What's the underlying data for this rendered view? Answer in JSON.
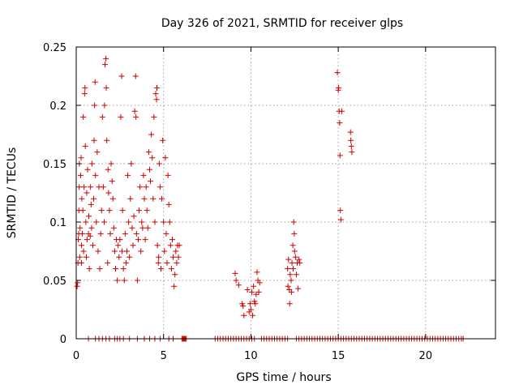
{
  "chart_data": {
    "type": "scatter",
    "title": "Day 326 of 2021, SRMTID for receiver glps",
    "xlabel": "GPS time / hours",
    "ylabel": "SRMTID / TECUs",
    "xlim": [
      0,
      24
    ],
    "ylim": [
      0,
      0.25
    ],
    "xticks": [
      0,
      5,
      10,
      15,
      20
    ],
    "xtick_labels": [
      "0",
      "5",
      "10",
      "15",
      "20"
    ],
    "yticks": [
      0,
      0.05,
      0.1,
      0.15,
      0.2,
      0.25
    ],
    "ytick_labels": [
      "0",
      "0.05",
      "0.1",
      "0.15",
      "0.2",
      "0.25"
    ],
    "grid": true,
    "marker": "plus",
    "color": "#cc0000",
    "series": [
      {
        "points": [
          [
            0.05,
            0.045
          ],
          [
            0.08,
            0.048
          ],
          [
            0.1,
            0.065
          ],
          [
            0.12,
            0.085
          ],
          [
            0.14,
            0.09
          ],
          [
            0.15,
            0.11
          ],
          [
            0.17,
            0.13
          ],
          [
            0.18,
            0.15
          ],
          [
            0.2,
            0.07
          ],
          [
            0.22,
            0.095
          ],
          [
            0.25,
            0.14
          ],
          [
            0.28,
            0.155
          ],
          [
            0.3,
            0.08
          ],
          [
            0.3,
            0.065
          ],
          [
            0.32,
            0.12
          ],
          [
            0.35,
            0.09
          ],
          [
            0.38,
            0.11
          ],
          [
            0.4,
            0.19
          ],
          [
            0.42,
            0.075
          ],
          [
            0.45,
            0.13
          ],
          [
            0.48,
            0.21
          ],
          [
            0.5,
            0.215
          ],
          [
            0.52,
            0.165
          ],
          [
            0.55,
            0.1
          ],
          [
            0.58,
            0.07
          ],
          [
            0.6,
            0.125
          ],
          [
            0.62,
            0.085
          ],
          [
            0.65,
            0.145
          ],
          [
            0.7,
            0.09
          ],
          [
            0.72,
            0.105
          ],
          [
            0.75,
            0.06
          ],
          [
            0.8,
            0.088
          ],
          [
            0.82,
            0.13
          ],
          [
            0.85,
            0.115
          ],
          [
            0.88,
            0.095
          ],
          [
            0.9,
            0.15
          ],
          [
            0.95,
            0.08
          ],
          [
            1.0,
            0.12
          ],
          [
            1.02,
            0.17
          ],
          [
            1.05,
            0.2
          ],
          [
            1.08,
            0.22
          ],
          [
            1.1,
            0.14
          ],
          [
            1.15,
            0.1
          ],
          [
            1.2,
            0.16
          ],
          [
            1.25,
            0.075
          ],
          [
            1.3,
            0.13
          ],
          [
            1.35,
            0.06
          ],
          [
            1.4,
            0.09
          ],
          [
            1.45,
            0.11
          ],
          [
            1.5,
            0.19
          ],
          [
            1.55,
            0.13
          ],
          [
            1.6,
            0.1
          ],
          [
            1.62,
            0.2
          ],
          [
            1.65,
            0.235
          ],
          [
            1.7,
            0.24
          ],
          [
            1.72,
            0.215
          ],
          [
            1.75,
            0.17
          ],
          [
            1.8,
            0.065
          ],
          [
            1.82,
            0.145
          ],
          [
            1.85,
            0.125
          ],
          [
            1.9,
            0.11
          ],
          [
            1.95,
            0.09
          ],
          [
            2.0,
            0.15
          ],
          [
            2.05,
            0.135
          ],
          [
            2.1,
            0.12
          ],
          [
            2.15,
            0.095
          ],
          [
            2.2,
            0.075
          ],
          [
            2.25,
            0.06
          ],
          [
            2.3,
            0.085
          ],
          [
            2.35,
            0.05
          ],
          [
            2.4,
            0.08
          ],
          [
            2.45,
            0.07
          ],
          [
            2.5,
            0.085
          ],
          [
            2.55,
            0.19
          ],
          [
            2.6,
            0.225
          ],
          [
            2.62,
            0.075
          ],
          [
            2.65,
            0.11
          ],
          [
            2.7,
            0.06
          ],
          [
            2.75,
            0.05
          ],
          [
            2.8,
            0.09
          ],
          [
            2.85,
            0.065
          ],
          [
            2.9,
            0.075
          ],
          [
            2.95,
            0.14
          ],
          [
            3.0,
            0.1
          ],
          [
            3.05,
            0.07
          ],
          [
            3.1,
            0.12
          ],
          [
            3.15,
            0.15
          ],
          [
            3.2,
            0.095
          ],
          [
            3.25,
            0.08
          ],
          [
            3.3,
            0.105
          ],
          [
            3.35,
            0.195
          ],
          [
            3.4,
            0.225
          ],
          [
            3.42,
            0.19
          ],
          [
            3.45,
            0.09
          ],
          [
            3.5,
            0.05
          ],
          [
            3.55,
            0.085
          ],
          [
            3.6,
            0.11
          ],
          [
            3.65,
            0.13
          ],
          [
            3.7,
            0.075
          ],
          [
            3.75,
            0.1
          ],
          [
            3.8,
            0.095
          ],
          [
            3.85,
            0.14
          ],
          [
            3.9,
            0.12
          ],
          [
            3.95,
            0.085
          ],
          [
            4.0,
            0.13
          ],
          [
            4.05,
            0.11
          ],
          [
            4.1,
            0.095
          ],
          [
            4.15,
            0.16
          ],
          [
            4.2,
            0.145
          ],
          [
            4.25,
            0.135
          ],
          [
            4.3,
            0.175
          ],
          [
            4.35,
            0.155
          ],
          [
            4.4,
            0.12
          ],
          [
            4.45,
            0.19
          ],
          [
            4.5,
            0.1
          ],
          [
            4.55,
            0.21
          ],
          [
            4.6,
            0.205
          ],
          [
            4.62,
            0.215
          ],
          [
            4.65,
            0.08
          ],
          [
            4.7,
            0.065
          ],
          [
            4.72,
            0.07
          ],
          [
            4.75,
            0.15
          ],
          [
            4.8,
            0.13
          ],
          [
            4.85,
            0.06
          ],
          [
            4.9,
            0.12
          ],
          [
            4.95,
            0.17
          ],
          [
            5.0,
            0.1
          ],
          [
            5.05,
            0.075
          ],
          [
            5.1,
            0.155
          ],
          [
            5.15,
            0.09
          ],
          [
            5.2,
            0.065
          ],
          [
            5.25,
            0.14
          ],
          [
            5.3,
            0.115
          ],
          [
            5.35,
            0.1
          ],
          [
            5.4,
            0.08
          ],
          [
            5.45,
            0.06
          ],
          [
            5.5,
            0.085
          ],
          [
            5.55,
            0.07
          ],
          [
            5.6,
            0.045
          ],
          [
            5.65,
            0.055
          ],
          [
            5.7,
            0.075
          ],
          [
            5.75,
            0.065
          ],
          [
            5.8,
            0.08
          ],
          [
            5.85,
            0.07
          ],
          [
            5.9,
            0.08
          ],
          [
            9.1,
            0.056
          ],
          [
            9.15,
            0.05
          ],
          [
            9.3,
            0.046
          ],
          [
            9.5,
            0.03
          ],
          [
            9.55,
            0.028
          ],
          [
            9.6,
            0.02
          ],
          [
            9.8,
            0.042
          ],
          [
            9.9,
            0.023
          ],
          [
            9.95,
            0.03
          ],
          [
            10.0,
            0.025
          ],
          [
            10.05,
            0.04
          ],
          [
            10.1,
            0.02
          ],
          [
            10.15,
            0.045
          ],
          [
            10.2,
            0.032
          ],
          [
            10.25,
            0.03
          ],
          [
            10.3,
            0.038
          ],
          [
            10.35,
            0.057
          ],
          [
            10.4,
            0.05
          ],
          [
            10.45,
            0.04
          ],
          [
            10.5,
            0.048
          ],
          [
            12.1,
            0.06
          ],
          [
            12.12,
            0.045
          ],
          [
            12.15,
            0.068
          ],
          [
            12.2,
            0.042
          ],
          [
            12.22,
            0.03
          ],
          [
            12.25,
            0.055
          ],
          [
            12.3,
            0.05
          ],
          [
            12.32,
            0.04
          ],
          [
            12.35,
            0.065
          ],
          [
            12.4,
            0.08
          ],
          [
            12.42,
            0.06
          ],
          [
            12.45,
            0.1
          ],
          [
            12.48,
            0.09
          ],
          [
            12.5,
            0.075
          ],
          [
            12.55,
            0.07
          ],
          [
            12.6,
            0.055
          ],
          [
            12.65,
            0.065
          ],
          [
            12.7,
            0.043
          ],
          [
            12.75,
            0.068
          ],
          [
            12.8,
            0.065
          ],
          [
            14.95,
            0.228
          ],
          [
            15.0,
            0.213
          ],
          [
            15.02,
            0.215
          ],
          [
            15.05,
            0.195
          ],
          [
            15.08,
            0.185
          ],
          [
            15.1,
            0.157
          ],
          [
            15.12,
            0.11
          ],
          [
            15.15,
            0.102
          ],
          [
            15.2,
            0.195
          ],
          [
            15.7,
            0.177
          ],
          [
            15.72,
            0.17
          ],
          [
            15.75,
            0.165
          ],
          [
            15.78,
            0.16
          ]
        ]
      },
      {
        "points": [
          [
            0.7,
            0
          ],
          [
            1.1,
            0
          ],
          [
            1.3,
            0
          ],
          [
            1.5,
            0
          ],
          [
            1.7,
            0
          ],
          [
            1.9,
            0
          ],
          [
            2.2,
            0
          ],
          [
            2.35,
            0
          ],
          [
            2.5,
            0
          ],
          [
            2.7,
            0
          ],
          [
            3.05,
            0
          ],
          [
            3.5,
            0
          ],
          [
            3.9,
            0
          ],
          [
            4.2,
            0
          ],
          [
            4.5,
            0
          ],
          [
            4.8,
            0
          ],
          [
            5.3,
            0
          ],
          [
            5.55,
            0
          ],
          [
            6.05,
            0
          ],
          [
            6.1,
            0
          ],
          [
            6.15,
            0
          ],
          [
            6.2,
            0
          ],
          [
            6.25,
            0
          ],
          [
            6.3,
            0
          ],
          [
            7.95,
            0
          ],
          [
            8.1,
            0
          ],
          [
            8.25,
            0
          ],
          [
            8.4,
            0
          ],
          [
            8.55,
            0
          ],
          [
            8.7,
            0
          ],
          [
            8.85,
            0
          ],
          [
            9.0,
            0
          ],
          [
            9.15,
            0
          ],
          [
            9.3,
            0
          ],
          [
            9.45,
            0
          ],
          [
            9.6,
            0
          ],
          [
            9.75,
            0
          ],
          [
            9.9,
            0
          ],
          [
            10.05,
            0
          ],
          [
            10.2,
            0
          ],
          [
            10.6,
            0
          ],
          [
            10.75,
            0
          ],
          [
            10.9,
            0
          ],
          [
            11.05,
            0
          ],
          [
            11.2,
            0
          ],
          [
            11.35,
            0
          ],
          [
            11.5,
            0
          ],
          [
            11.65,
            0
          ],
          [
            11.8,
            0
          ],
          [
            11.95,
            0
          ],
          [
            12.1,
            0
          ],
          [
            12.6,
            0
          ],
          [
            12.75,
            0
          ],
          [
            12.9,
            0
          ],
          [
            13.05,
            0
          ],
          [
            13.2,
            0
          ],
          [
            13.35,
            0
          ],
          [
            13.5,
            0
          ],
          [
            13.65,
            0
          ],
          [
            13.8,
            0
          ],
          [
            13.95,
            0
          ],
          [
            14.1,
            0
          ],
          [
            14.25,
            0
          ],
          [
            14.4,
            0
          ],
          [
            14.55,
            0
          ],
          [
            14.7,
            0
          ],
          [
            14.85,
            0
          ],
          [
            15.0,
            0
          ],
          [
            15.15,
            0
          ],
          [
            15.3,
            0
          ],
          [
            15.45,
            0
          ],
          [
            15.6,
            0
          ],
          [
            15.75,
            0
          ],
          [
            15.9,
            0
          ],
          [
            16.05,
            0
          ],
          [
            16.2,
            0
          ],
          [
            16.35,
            0
          ],
          [
            16.5,
            0
          ],
          [
            16.65,
            0
          ],
          [
            16.8,
            0
          ],
          [
            16.95,
            0
          ],
          [
            17.1,
            0
          ],
          [
            17.25,
            0
          ],
          [
            17.4,
            0
          ],
          [
            17.55,
            0
          ],
          [
            17.7,
            0
          ],
          [
            17.85,
            0
          ],
          [
            18.0,
            0
          ],
          [
            18.15,
            0
          ],
          [
            18.3,
            0
          ],
          [
            18.45,
            0
          ],
          [
            18.6,
            0
          ],
          [
            18.75,
            0
          ],
          [
            18.9,
            0
          ],
          [
            19.05,
            0
          ],
          [
            19.2,
            0
          ],
          [
            19.35,
            0
          ],
          [
            19.5,
            0
          ],
          [
            19.65,
            0
          ],
          [
            19.8,
            0
          ],
          [
            19.95,
            0
          ],
          [
            20.1,
            0
          ],
          [
            20.25,
            0
          ],
          [
            20.4,
            0
          ],
          [
            20.55,
            0
          ],
          [
            20.7,
            0
          ],
          [
            20.85,
            0
          ],
          [
            21.0,
            0
          ],
          [
            21.15,
            0
          ],
          [
            21.3,
            0
          ],
          [
            21.45,
            0
          ],
          [
            21.6,
            0
          ],
          [
            21.75,
            0
          ],
          [
            21.9,
            0
          ],
          [
            22.05,
            0
          ],
          [
            22.15,
            0
          ]
        ]
      }
    ]
  }
}
